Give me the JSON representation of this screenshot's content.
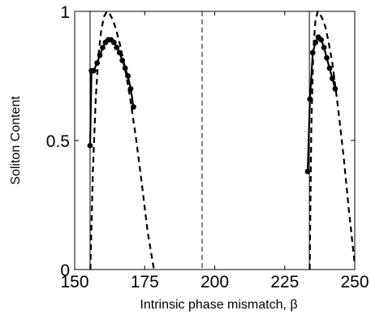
{
  "chart_data": {
    "type": "line",
    "title": "",
    "xlabel": "Intrinsic phase mismatch, β",
    "ylabel": "Soliton Content",
    "xlim": [
      150,
      250
    ],
    "ylim": [
      0,
      1
    ],
    "xticks": [
      150,
      175,
      200,
      225,
      250
    ],
    "xtick_labels": [
      "150",
      "175",
      "200",
      "225",
      "250"
    ],
    "yticks": [
      0,
      0.5,
      1
    ],
    "ytick_labels": [
      "0",
      "0.5",
      "1"
    ],
    "grid": false,
    "legend": "none",
    "vlines": [
      {
        "x": 155.5,
        "style": "solid"
      },
      {
        "x": 195.5,
        "style": "dashed"
      },
      {
        "x": 233.8,
        "style": "solid"
      }
    ],
    "series": [
      {
        "style": "dashed",
        "color": "#000000",
        "x": [
          155.6,
          156.5,
          157.5,
          158.5,
          159.5,
          160.5,
          161.5,
          162.5,
          163.5,
          164.5,
          166,
          168,
          170,
          172,
          174,
          176,
          178.3
        ],
        "y": [
          0.0,
          0.38,
          0.66,
          0.83,
          0.93,
          0.98,
          1.0,
          0.99,
          0.97,
          0.94,
          0.88,
          0.78,
          0.65,
          0.5,
          0.33,
          0.15,
          0.0
        ]
      },
      {
        "style": "dashed",
        "color": "#000000",
        "x": [
          233.9,
          234.5,
          235.2,
          236,
          236.8,
          237.6,
          238.5,
          239.5,
          240.5,
          242,
          244,
          246,
          248,
          250
        ],
        "y": [
          0.0,
          0.55,
          0.85,
          0.97,
          1.0,
          0.99,
          0.97,
          0.94,
          0.89,
          0.8,
          0.63,
          0.44,
          0.22,
          0.02
        ]
      },
      {
        "style": "solid-markers",
        "color": "#000000",
        "x": [
          155.5,
          156.0,
          156.8,
          158.0,
          159.0,
          160.0,
          161.0,
          162.0,
          163.0,
          164.0,
          165.0,
          166.0,
          167.0,
          168.0,
          169.0,
          170.0,
          171.0
        ],
        "y": [
          0.48,
          0.77,
          0.77,
          0.8,
          0.83,
          0.86,
          0.88,
          0.89,
          0.89,
          0.88,
          0.86,
          0.84,
          0.81,
          0.78,
          0.75,
          0.7,
          0.63
        ]
      },
      {
        "style": "solid-markers",
        "color": "#000000",
        "x": [
          233.2,
          234.0,
          235.0,
          236.0,
          237.0,
          238.0,
          239.0,
          240.0,
          241.0,
          242.0,
          243.0
        ],
        "y": [
          0.38,
          0.66,
          0.84,
          0.88,
          0.9,
          0.89,
          0.86,
          0.82,
          0.78,
          0.74,
          0.7
        ]
      }
    ]
  }
}
